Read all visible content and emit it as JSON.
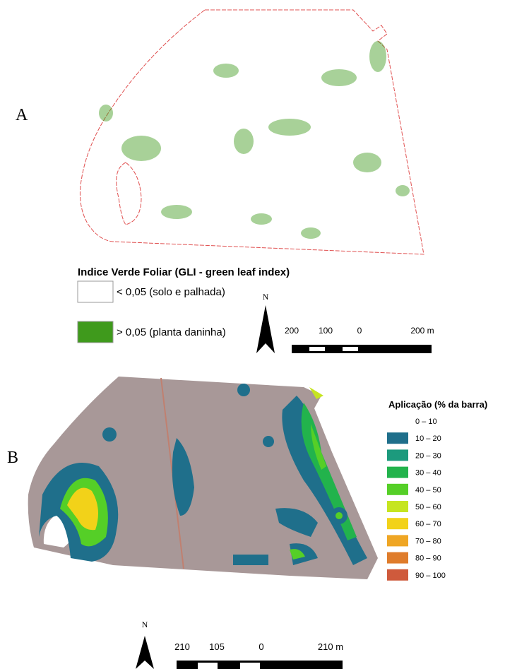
{
  "panel_a": {
    "label": "A",
    "legend_title": "Indice Verde Foliar (GLI - green leaf index)",
    "legend_items": [
      {
        "label": "< 0,05 (solo e palhada)",
        "color": "#ffffff"
      },
      {
        "label": "> 0,05 (planta daninha)",
        "color": "#3f9a1c"
      }
    ],
    "north": "N",
    "scale_labels": [
      "200",
      "100",
      "0",
      "200 m"
    ]
  },
  "panel_b": {
    "label": "B",
    "legend_title": "Aplicação (% da barra)",
    "legend_items": [
      {
        "label": "0 – 10",
        "color": "#ffffff"
      },
      {
        "label": "10 – 20",
        "color": "#1f6f8b"
      },
      {
        "label": "20 – 30",
        "color": "#1c9a7d"
      },
      {
        "label": "30 – 40",
        "color": "#22b34c"
      },
      {
        "label": "40 – 50",
        "color": "#55cf27"
      },
      {
        "label": "50 – 60",
        "color": "#c6e520"
      },
      {
        "label": "60 – 70",
        "color": "#f2d219"
      },
      {
        "label": "70 – 80",
        "color": "#efa624"
      },
      {
        "label": "80 – 90",
        "color": "#df7c2b"
      },
      {
        "label": "90 – 100",
        "color": "#cf5a3c"
      }
    ],
    "north": "N",
    "scale_labels": [
      "210",
      "105",
      "0",
      "210 m"
    ]
  }
}
